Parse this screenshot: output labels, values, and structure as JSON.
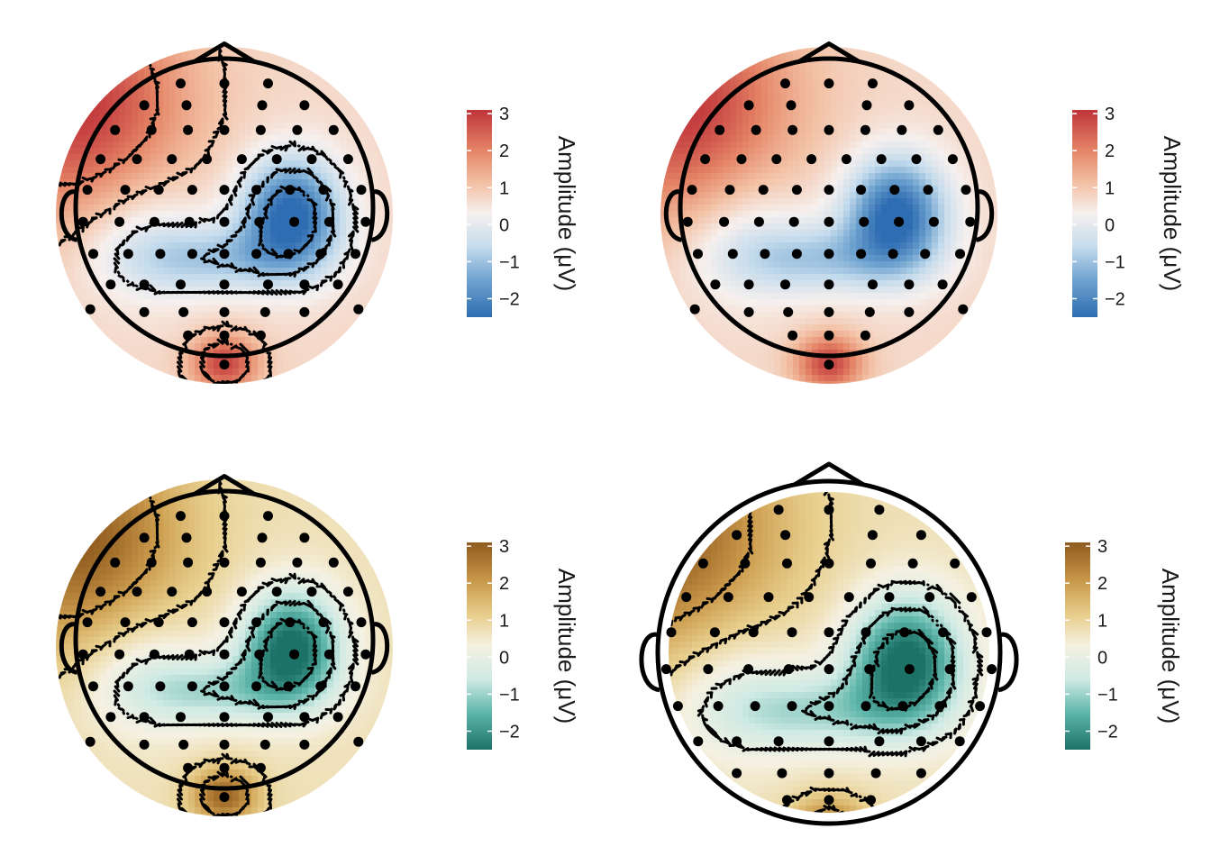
{
  "chart_data": [
    {
      "type": "heatmap",
      "subtype": "eeg-topoplot",
      "palette": "RdBu",
      "head_outline": "inside",
      "contours": true,
      "legend": {
        "title": "Amplitude (μV)",
        "ticks": [
          3,
          2,
          1,
          0,
          -1,
          -2
        ],
        "range": [
          -2.5,
          3.1
        ]
      },
      "value_range": [
        -2.5,
        3.1
      ],
      "features": [
        {
          "label": "posterior-right negativity",
          "value": -2.5
        },
        {
          "label": "occipital positivity",
          "value": 2.6
        },
        {
          "label": "left-frontal positivity",
          "value": 3.0
        }
      ]
    },
    {
      "type": "heatmap",
      "subtype": "eeg-topoplot",
      "palette": "RdBu",
      "head_outline": "inside",
      "contours": false,
      "legend": {
        "title": "Amplitude (μV)",
        "ticks": [
          3,
          2,
          1,
          0,
          -1,
          -2
        ],
        "range": [
          -2.5,
          3.1
        ]
      },
      "value_range": [
        -2.5,
        3.1
      ],
      "features": [
        {
          "label": "posterior-right negativity",
          "value": -2.5
        },
        {
          "label": "occipital positivity",
          "value": 2.6
        },
        {
          "label": "left-frontal positivity",
          "value": 3.0
        }
      ]
    },
    {
      "type": "heatmap",
      "subtype": "eeg-topoplot",
      "palette": "BrBG",
      "head_outline": "inside",
      "contours": true,
      "legend": {
        "title": "Amplitude (μV)",
        "ticks": [
          3,
          2,
          1,
          0,
          -1,
          -2
        ],
        "range": [
          -2.5,
          3.1
        ]
      },
      "value_range": [
        -2.5,
        3.1
      ],
      "features": [
        {
          "label": "posterior-right negativity",
          "value": -2.5
        },
        {
          "label": "occipital positivity",
          "value": 2.6
        },
        {
          "label": "left-frontal positivity",
          "value": 3.0
        }
      ]
    },
    {
      "type": "heatmap",
      "subtype": "eeg-topoplot",
      "palette": "BrBG",
      "head_outline": "outside",
      "contours": true,
      "legend": {
        "title": "Amplitude (μV)",
        "ticks": [
          3,
          2,
          1,
          0,
          -1,
          -2
        ],
        "range": [
          -2.5,
          3.1
        ]
      },
      "value_range": [
        -2.5,
        3.1
      ],
      "features": [
        {
          "label": "posterior-right negativity",
          "value": -2.5
        },
        {
          "label": "occipital positivity",
          "value": 2.6
        },
        {
          "label": "left-frontal positivity",
          "value": 3.0
        }
      ]
    }
  ],
  "colors": {
    "RdBu": [
      "#2f6db2",
      "#6fa3d0",
      "#c4dbec",
      "#f6f0ee",
      "#f3c2a6",
      "#e58567",
      "#c0353a"
    ],
    "BrBG": [
      "#1c7266",
      "#5fb6aa",
      "#cfeae4",
      "#f5f1e2",
      "#e8d08f",
      "#cc9c4d",
      "#8f5a1d"
    ],
    "ink": "#000000"
  }
}
